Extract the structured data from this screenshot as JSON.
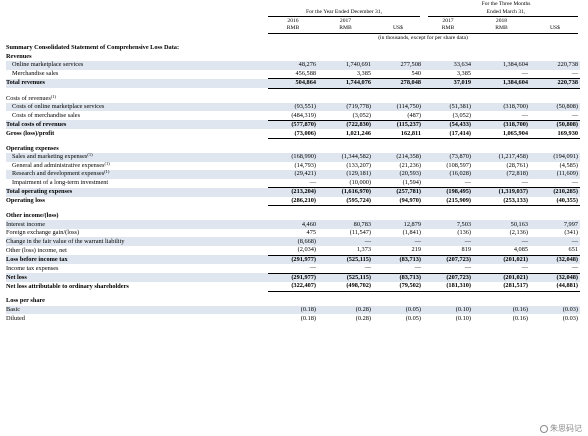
{
  "header": {
    "year_group": "For the Year Ended December 31,",
    "three_month_group_line1": "For the Three Months",
    "three_month_group_line2": "Ended March 31,",
    "years": [
      "2016",
      "2017",
      "",
      "2017",
      "2018",
      ""
    ],
    "currencies": [
      "RMB",
      "RMB",
      "US$",
      "RMB",
      "RMB",
      "US$"
    ],
    "units_note": "(in thousands, except for per share data)"
  },
  "rows": [
    {
      "label": "Summary Consolidated Statement of Comprehensive Loss Data:",
      "style": "bold",
      "values": []
    },
    {
      "label": "Revenues",
      "style": "bold",
      "values": []
    },
    {
      "label": "Online marketplace services",
      "indent": 1,
      "shade": true,
      "values": [
        "48,276",
        "1,740,691",
        "277,508",
        "33,634",
        "1,384,604",
        "220,738"
      ]
    },
    {
      "label": "Merchandise sales",
      "indent": 1,
      "values": [
        "456,588",
        "3,385",
        "540",
        "3,385",
        "—",
        "—"
      ]
    },
    {
      "label": "Total revenues",
      "style": "bold",
      "shade": true,
      "border": "top-double",
      "values": [
        "504,864",
        "1,744,076",
        "278,048",
        "37,019",
        "1,384,604",
        "220,738"
      ]
    },
    {
      "gap": true
    },
    {
      "label": "Costs of revenues",
      "sup": "(1)",
      "values": []
    },
    {
      "label": "Costs of online marketplace services",
      "indent": 1,
      "shade": true,
      "values": [
        "(93,551)",
        "(719,778)",
        "(114,750)",
        "(51,381)",
        "(318,700)",
        "(50,808)"
      ]
    },
    {
      "label": "Costs of merchandise sales",
      "indent": 1,
      "values": [
        "(484,319)",
        "(3,052)",
        "(487)",
        "(3,052)",
        "—",
        "—"
      ]
    },
    {
      "label": "Total costs of revenues",
      "style": "bold",
      "shade": true,
      "border": "top",
      "values": [
        "(577,870)",
        "(722,830)",
        "(115,237)",
        "(54,433)",
        "(318,700)",
        "(50,808)"
      ]
    },
    {
      "label": "Gross (loss)/profit",
      "style": "bold",
      "border": "bottom",
      "values": [
        "(73,006)",
        "1,021,246",
        "162,811",
        "(17,414)",
        "1,065,904",
        "169,930"
      ]
    },
    {
      "gap": true
    },
    {
      "label": "Operating expenses",
      "style": "bold",
      "values": []
    },
    {
      "label": "Sales and marketing expenses",
      "sup": "(1)",
      "indent": 1,
      "shade": true,
      "values": [
        "(168,990)",
        "(1,344,582)",
        "(214,358)",
        "(73,870)",
        "(1,217,458)",
        "(194,091)"
      ]
    },
    {
      "label": "General and administrative expenses",
      "sup": "(1)",
      "indent": 1,
      "values": [
        "(14,793)",
        "(133,207)",
        "(21,236)",
        "(108,597)",
        "(28,761)",
        "(4,585)"
      ]
    },
    {
      "label": "Research and development expenses",
      "sup": "(1)",
      "indent": 1,
      "shade": true,
      "values": [
        "(29,421)",
        "(129,181)",
        "(20,593)",
        "(16,028)",
        "(72,818)",
        "(11,609)"
      ]
    },
    {
      "label": "Impairment of a long-term investment",
      "indent": 1,
      "values": [
        "—",
        "(10,000)",
        "(1,594)",
        "—",
        "—",
        "—"
      ]
    },
    {
      "label": "Total operating expenses",
      "style": "bold",
      "shade": true,
      "border": "top",
      "values": [
        "(213,204)",
        "(1,616,970)",
        "(257,781)",
        "(198,495)",
        "(1,319,037)",
        "(210,285)"
      ]
    },
    {
      "label": "Operating loss",
      "style": "bold",
      "border": "bottom",
      "values": [
        "(286,210)",
        "(595,724)",
        "(94,970)",
        "(215,909)",
        "(253,133)",
        "(40,355)"
      ]
    },
    {
      "gap": true
    },
    {
      "label": "Other income/(loss)",
      "style": "bold",
      "values": []
    },
    {
      "label": "Interest income",
      "shade": true,
      "values": [
        "4,460",
        "80,783",
        "12,879",
        "7,503",
        "50,163",
        "7,997"
      ]
    },
    {
      "label": "Foreign exchange gain/(loss)",
      "values": [
        "475",
        "(11,547)",
        "(1,841)",
        "(136)",
        "(2,136)",
        "(341)"
      ]
    },
    {
      "label": "Change in the fair value of the warrant liability",
      "shade": true,
      "values": [
        "(8,668)",
        "—",
        "—",
        "—",
        "—",
        "—"
      ]
    },
    {
      "label": "Other (loss) income, net",
      "values": [
        "(2,034)",
        "1,373",
        "219",
        "819",
        "4,085",
        "651"
      ]
    },
    {
      "label": "Loss before income tax",
      "style": "bold",
      "shade": true,
      "border": "top",
      "values": [
        "(291,977)",
        "(525,115)",
        "(83,713)",
        "(207,723)",
        "(201,021)",
        "(32,048)"
      ]
    },
    {
      "label": "Income tax expenses",
      "values": [
        "—",
        "—",
        "—",
        "—",
        "—",
        "—"
      ]
    },
    {
      "label": "Net loss",
      "style": "bold",
      "shade": true,
      "border": "top",
      "values": [
        "(291,977)",
        "(525,115)",
        "(83,713)",
        "(207,723)",
        "(201,021)",
        "(32,048)"
      ]
    },
    {
      "label": "Net loss attributable to ordinary shareholders",
      "style": "bold",
      "border": "double",
      "values": [
        "(322,407)",
        "(498,702)",
        "(79,502)",
        "(181,310)",
        "(281,517)",
        "(44,881)"
      ]
    },
    {
      "gap": true
    },
    {
      "label": "Loss per share",
      "style": "bold",
      "values": []
    },
    {
      "label": "Basic",
      "shade": true,
      "values": [
        "(0.18)",
        "(0.28)",
        "(0.05)",
        "(0.10)",
        "(0.16)",
        "(0.03)"
      ]
    },
    {
      "label": "Diluted",
      "values": [
        "(0.18)",
        "(0.28)",
        "(0.05)",
        "(0.10)",
        "(0.16)",
        "(0.03)"
      ]
    }
  ],
  "watermark": {
    "icon": "wechat-icon",
    "text": "朱思码记"
  }
}
